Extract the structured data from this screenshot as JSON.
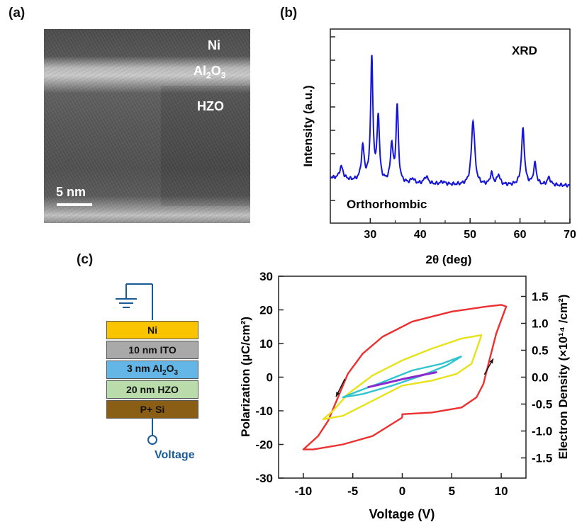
{
  "panels": {
    "a_label": "(a)",
    "b_label": "(b)",
    "c_label": "(c)"
  },
  "tem": {
    "label_ni": "Ni",
    "label_al2o3": "Al",
    "label_al2o3_sub2": "2",
    "label_al2o3_o": "O",
    "label_al2o3_sub3": "3",
    "label_hzo": "HZO",
    "scalebar_label": "5 nm"
  },
  "stack": {
    "layers": [
      {
        "label": "Ni",
        "color": "#fbc400"
      },
      {
        "label": "10 nm ITO",
        "color": "#a9a9a9"
      },
      {
        "label_pre": "3 nm Al",
        "label_sub1": "2",
        "label_mid": "O",
        "label_sub2": "3",
        "color": "#63b6e6"
      },
      {
        "label": "20 nm HZO",
        "color": "#b9dcaa"
      },
      {
        "label": "P+ Si",
        "color": "#8b5e16"
      }
    ],
    "voltage_label": "Voltage",
    "wire_color": "#1a5a96"
  },
  "chart_data": [
    {
      "type": "line",
      "title": "",
      "annotation_top": "XRD",
      "annotation_bottom": "Orthorhombic",
      "xlabel": "2θ (deg)",
      "ylabel": "Intensity (a.u.)",
      "xlim": [
        22,
        70
      ],
      "xticks": [
        30,
        40,
        50,
        60,
        70
      ],
      "y_tick_labels": "none",
      "color": "#1515d8",
      "peaks": [
        {
          "x": 24.2,
          "h": 0.1,
          "w": 0.45
        },
        {
          "x": 28.5,
          "h": 0.27,
          "w": 0.35
        },
        {
          "x": 30.3,
          "h": 0.98,
          "w": 0.28
        },
        {
          "x": 31.6,
          "h": 0.52,
          "w": 0.28
        },
        {
          "x": 34.3,
          "h": 0.3,
          "w": 0.3
        },
        {
          "x": 35.4,
          "h": 0.62,
          "w": 0.28
        },
        {
          "x": 38.5,
          "h": 0.04,
          "w": 0.4
        },
        {
          "x": 41.2,
          "h": 0.06,
          "w": 0.5
        },
        {
          "x": 44.5,
          "h": 0.02,
          "w": 0.6
        },
        {
          "x": 50.6,
          "h": 0.52,
          "w": 0.4
        },
        {
          "x": 54.3,
          "h": 0.09,
          "w": 0.35
        },
        {
          "x": 55.7,
          "h": 0.08,
          "w": 0.35
        },
        {
          "x": 60.6,
          "h": 0.45,
          "w": 0.35
        },
        {
          "x": 63.0,
          "h": 0.17,
          "w": 0.35
        },
        {
          "x": 65.8,
          "h": 0.06,
          "w": 0.4
        }
      ]
    },
    {
      "type": "line",
      "title": "",
      "xlabel": "Voltage (V)",
      "ylabel": "Polarization (μC/cm²)",
      "y2label": "Electron Density (×10¹⁴ /cm²)",
      "xlim": [
        -12.5,
        12.5
      ],
      "ylim": [
        -30,
        30
      ],
      "xticks": [
        -10,
        -5,
        0,
        5,
        10
      ],
      "yticks": [
        -30,
        -20,
        -10,
        0,
        10,
        20,
        30
      ],
      "y2ticks": [
        -1.5,
        -1.0,
        -0.5,
        0.0,
        0.5,
        1.0,
        1.5
      ],
      "y2_per_y": 0.0625,
      "series": [
        {
          "color": "#ec2f2f",
          "points": [
            [
              0,
              -12
            ],
            [
              0,
              -11
            ],
            [
              3,
              -10.5
            ],
            [
              6,
              -9
            ],
            [
              7.5,
              -6
            ],
            [
              8.2,
              -2
            ],
            [
              8.8,
              5
            ],
            [
              9.5,
              13
            ],
            [
              10.5,
              21
            ],
            [
              10,
              21.5
            ],
            [
              8.5,
              21
            ],
            [
              5,
              19.5
            ],
            [
              1,
              16.5
            ],
            [
              -2,
              12
            ],
            [
              -4,
              7
            ],
            [
              -5.5,
              1
            ],
            [
              -6.5,
              -6
            ],
            [
              -7.5,
              -13
            ],
            [
              -8.5,
              -17.5
            ],
            [
              -10,
              -21.5
            ],
            [
              -9,
              -21.5
            ],
            [
              -6,
              -20
            ],
            [
              -3,
              -17.5
            ],
            [
              0,
              -12
            ]
          ]
        },
        {
          "color": "#e8e21a",
          "points": [
            [
              0,
              -2.5
            ],
            [
              3,
              -1
            ],
            [
              5.5,
              1
            ],
            [
              7,
              4
            ],
            [
              7.6,
              9
            ],
            [
              8,
              12.5
            ],
            [
              6,
              11.5
            ],
            [
              3,
              8.5
            ],
            [
              0,
              5
            ],
            [
              -3,
              0.5
            ],
            [
              -5.5,
              -5
            ],
            [
              -7,
              -10
            ],
            [
              -8,
              -12.5
            ],
            [
              -6,
              -11.5
            ],
            [
              -3,
              -7
            ],
            [
              0,
              -2.5
            ]
          ]
        },
        {
          "color": "#2fc4cf",
          "points": [
            [
              6,
              6.2
            ],
            [
              4,
              4
            ],
            [
              1,
              2
            ],
            [
              -2,
              -1.5
            ],
            [
              -4.5,
              -4.2
            ],
            [
              -6,
              -6
            ],
            [
              -4,
              -5
            ],
            [
              -1,
              -2.5
            ],
            [
              2,
              0.5
            ],
            [
              4.5,
              3.5
            ],
            [
              6,
              6.2
            ]
          ]
        },
        {
          "color": "#8a2bd0",
          "points": [
            [
              -3.5,
              -3
            ],
            [
              -2,
              -2
            ],
            [
              0,
              -0.6
            ],
            [
              2,
              0.6
            ],
            [
              3.5,
              1.5
            ]
          ]
        }
      ],
      "arrows": [
        {
          "from": [
            8.3,
            0.8
          ],
          "to": [
            9.2,
            5.5
          ]
        },
        {
          "from": [
            -5.8,
            -0.5
          ],
          "to": [
            -6.7,
            -5.8
          ]
        }
      ]
    }
  ]
}
